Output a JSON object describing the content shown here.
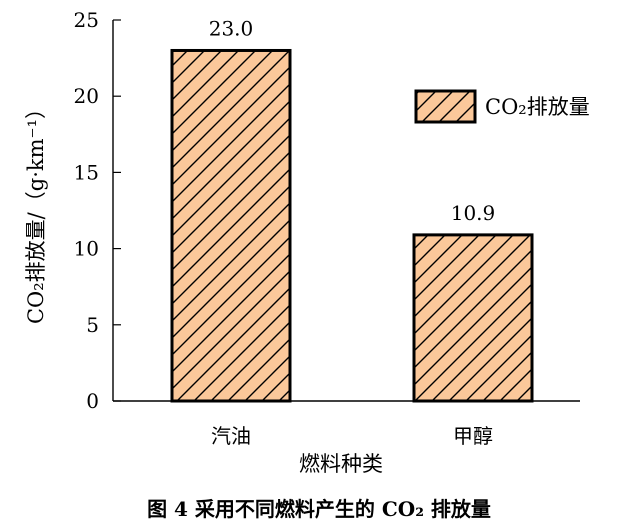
{
  "chart_data": {
    "type": "bar",
    "categories": [
      "汽油",
      "甲醇"
    ],
    "series": [
      {
        "name": "CO₂排放量",
        "values": [
          23.0,
          10.9
        ]
      }
    ],
    "data_labels": [
      "23.0",
      "10.9"
    ],
    "ylabel": "CO₂排放量/（g·km⁻¹）",
    "xlabel": "燃料种类",
    "yticks": [
      0,
      5,
      10,
      15,
      20,
      25
    ],
    "ylim": [
      0,
      25
    ],
    "grid": false,
    "legend": {
      "position": "right",
      "label": "CO₂排放量"
    },
    "colors": {
      "bar_fill": "#fbc89a",
      "hatch": "#000000"
    }
  },
  "caption": "图 4   采用不同燃料产生的 CO₂ 排放量"
}
